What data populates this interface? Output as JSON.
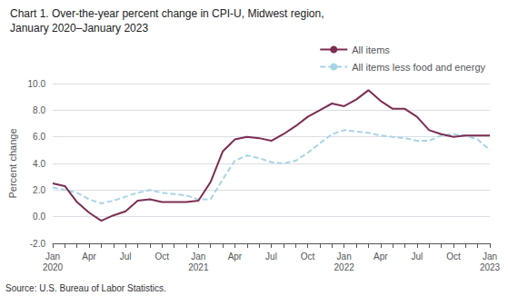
{
  "chart_data": {
    "type": "line",
    "title": "Chart 1. Over-the-year percent change in CPI-U, Midwest region,",
    "subtitle": "January 2020–January 2023",
    "ylabel": "Percent change",
    "annotations": [
      "Source: U.S. Bureau of Labor Statistics."
    ],
    "categories": [
      "Jan\n2020",
      null,
      null,
      "Apr",
      null,
      null,
      "Jul",
      null,
      null,
      "Oct",
      null,
      null,
      "Jan\n2021",
      null,
      null,
      "Apr",
      null,
      null,
      "Jul",
      null,
      null,
      "Oct",
      null,
      null,
      "Jan\n2022",
      null,
      null,
      "Apr",
      null,
      null,
      "Jul",
      null,
      null,
      "Oct",
      null,
      null,
      "Jan\n2023"
    ],
    "series": [
      {
        "name": "All items",
        "color": "#7B2D52",
        "line_style": "solid",
        "values": [
          2.5,
          2.3,
          1.1,
          0.3,
          -0.3,
          0.1,
          0.4,
          1.2,
          1.3,
          1.1,
          1.1,
          1.1,
          1.2,
          2.6,
          4.9,
          5.8,
          6.0,
          5.9,
          5.7,
          6.2,
          6.8,
          7.5,
          8.0,
          8.5,
          8.3,
          8.8,
          9.5,
          8.7,
          8.1,
          8.1,
          7.5,
          6.5,
          6.2,
          6.0,
          6.1,
          6.1,
          6.1
        ]
      },
      {
        "name": "All items less food and energy",
        "color": "#A8D4E6",
        "line_style": "dashed",
        "values": [
          2.2,
          2.0,
          1.8,
          1.3,
          1.0,
          1.2,
          1.5,
          1.8,
          2.0,
          1.8,
          1.7,
          1.6,
          1.3,
          1.3,
          2.8,
          4.2,
          4.6,
          4.4,
          4.1,
          4.0,
          4.2,
          4.8,
          5.5,
          6.2,
          6.5,
          6.4,
          6.3,
          6.1,
          6.0,
          5.9,
          5.7,
          5.7,
          6.1,
          6.2,
          6.1,
          5.8,
          5.0
        ]
      }
    ],
    "ylim": [
      -2.0,
      10.0
    ],
    "yticks": [
      {
        "value": -2.0,
        "label": "-2.0"
      },
      {
        "value": 0.0,
        "label": "0.0"
      },
      {
        "value": 2.0,
        "label": "2.0"
      },
      {
        "value": 4.0,
        "label": "4.0"
      },
      {
        "value": 6.0,
        "label": "6.0"
      },
      {
        "value": 8.0,
        "label": "8.0"
      },
      {
        "value": 10.0,
        "label": "10.0"
      }
    ],
    "grid": true,
    "legend": "upper right"
  }
}
